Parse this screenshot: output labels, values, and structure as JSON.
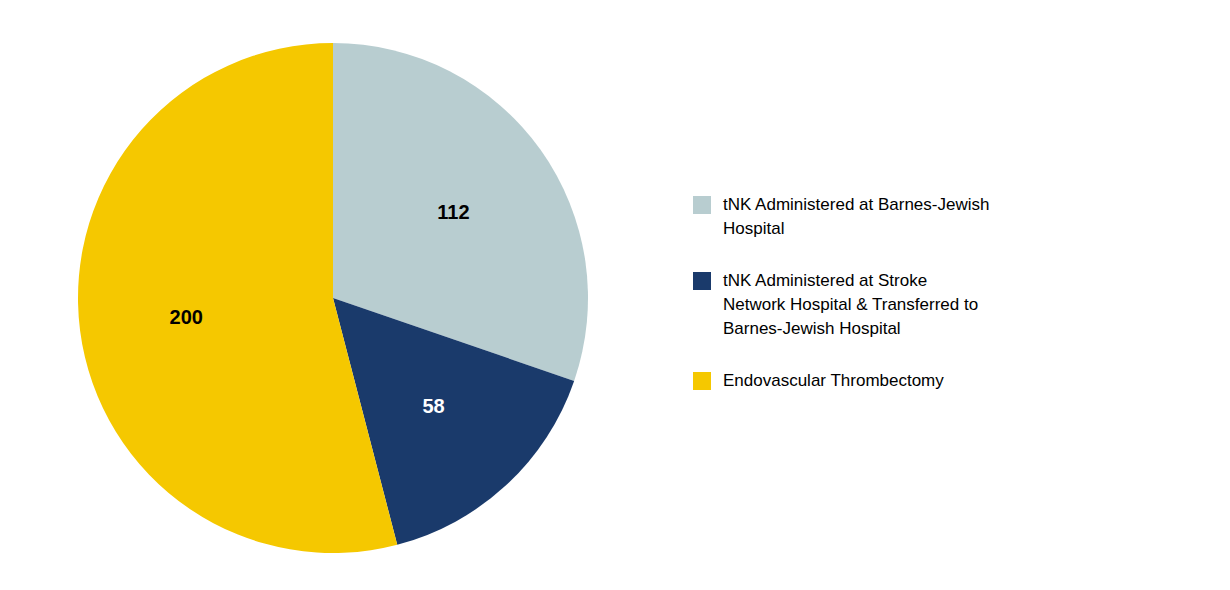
{
  "chart_data": {
    "type": "pie",
    "categories": [
      "tNK Administered at Barnes-Jewish\nHospital",
      "tNK Administered at Stroke\nNetwork Hospital & Transferred to\nBarnes-Jewish Hospital",
      "Endovascular Thrombectomy"
    ],
    "values": [
      112,
      58,
      200
    ],
    "colors": [
      "#b8cdd0",
      "#1a3a6b",
      "#f5c800"
    ],
    "data_labels": true,
    "legend": "right"
  }
}
